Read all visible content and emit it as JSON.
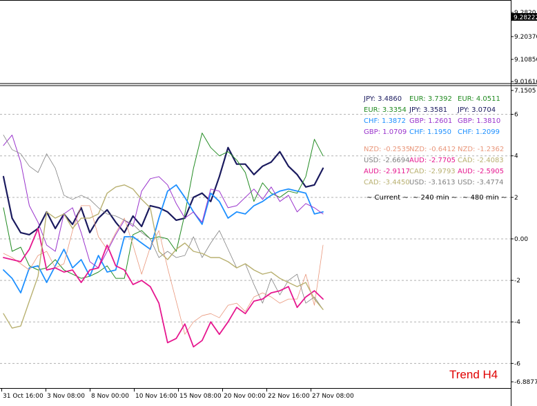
{
  "chart_data": [
    {
      "type": "line",
      "panel": "price",
      "title": "",
      "y_ticks": [
        "9.2820",
        "9.20370",
        "9.10850",
        "9.01610"
      ],
      "current_price_label": "9.28222"
    },
    {
      "type": "line",
      "panel": "currency-strength",
      "title": "Trend H4",
      "ylim": [
        -6.8877,
        7.1505
      ],
      "y_ticks": [
        "7.1505",
        "6",
        "4",
        "2",
        "0.00",
        "-2",
        "-4",
        "-6",
        "-6.8877"
      ],
      "zero_label": "0.00",
      "x_ticks": [
        "31 Oct 16:00",
        "3 Nov 08:00",
        "8 Nov 00:00",
        "10 Nov 16:00",
        "15 Nov 08:00",
        "20 Nov 00:00",
        "22 Nov 16:00",
        "27 Nov 08:00"
      ],
      "grid": true,
      "colors": {
        "JPY": "#1a1a5e",
        "EUR": "#228b22",
        "CHF": "#1e90ff",
        "GBP": "#9932cc",
        "NZD": "#e9967a",
        "USD": "#808080",
        "AUD": "#e6178f",
        "CAD": "#b8b070"
      },
      "series": [
        {
          "name": "JPY",
          "width": 2.2,
          "values": [
            3.0,
            1.0,
            0.3,
            0.2,
            0.5,
            1.3,
            0.5,
            1.2,
            0.7,
            1.5,
            0.3,
            1.0,
            1.4,
            0.8,
            0.3,
            1.1,
            0.6,
            1.6,
            1.5,
            1.3,
            0.9,
            1.0,
            2.0,
            2.2,
            1.8,
            3.0,
            4.4,
            3.6,
            3.6,
            3.1,
            3.5,
            3.7,
            4.2,
            3.5,
            3.1,
            2.5,
            2.6,
            3.4
          ]
        },
        {
          "name": "EUR",
          "width": 1.0,
          "values": [
            1.5,
            -0.6,
            -0.4,
            -1.3,
            -1.5,
            -1.4,
            -1.0,
            -1.5,
            -1.7,
            -1.9,
            -1.8,
            -1.6,
            -1.3,
            -1.9,
            -1.9,
            0.2,
            0.4,
            0.0,
            0.1,
            0.0,
            -0.6,
            1.2,
            3.4,
            5.1,
            4.4,
            4.0,
            4.2,
            3.8,
            3.2,
            1.8,
            2.7,
            2.2,
            2.0,
            2.3,
            2.2,
            3.0,
            4.8,
            4.0
          ]
        },
        {
          "name": "CHF",
          "width": 1.8,
          "values": [
            -1.5,
            -1.9,
            -2.6,
            -1.4,
            -1.3,
            -2.1,
            -1.3,
            -0.5,
            -1.4,
            -1.0,
            -1.8,
            -0.8,
            -1.6,
            -1.5,
            0.1,
            0.1,
            -0.2,
            -0.5,
            1.0,
            2.3,
            2.6,
            2.0,
            1.3,
            0.7,
            2.2,
            1.8,
            1.0,
            1.3,
            1.2,
            1.6,
            1.8,
            2.1,
            2.3,
            2.4,
            2.3,
            2.2,
            1.2,
            1.3
          ]
        },
        {
          "name": "GBP",
          "width": 1.0,
          "values": [
            4.5,
            5.0,
            3.7,
            1.6,
            0.8,
            -0.3,
            -0.6,
            1.2,
            1.5,
            0.3,
            -1.1,
            -1.4,
            -0.6,
            0.2,
            0.9,
            0.6,
            2.3,
            2.9,
            3.0,
            2.6,
            1.7,
            1.0,
            1.3,
            0.8,
            2.4,
            2.3,
            1.5,
            1.6,
            2.0,
            2.4,
            1.9,
            2.5,
            1.8,
            2.1,
            1.3,
            1.7,
            1.5,
            1.2
          ]
        },
        {
          "name": "NZD",
          "width": 0.8,
          "values": [
            -0.7,
            -0.9,
            -1.2,
            -1.5,
            -0.8,
            -0.6,
            -1.4,
            -1.2,
            0.4,
            1.6,
            1.6,
            0.1,
            -0.5,
            0.3,
            1.0,
            -0.3,
            -1.7,
            -0.4,
            0.4,
            -1.4,
            -3.0,
            -4.6,
            -4.0,
            -3.7,
            -3.6,
            -3.8,
            -3.2,
            -3.1,
            -3.5,
            -2.8,
            -2.6,
            -2.8,
            -3.1,
            -2.9,
            -2.9,
            -1.7,
            -3.2,
            -0.3
          ]
        },
        {
          "name": "USD",
          "width": 0.8,
          "values": [
            5.0,
            4.3,
            4.1,
            3.5,
            3.2,
            4.1,
            3.4,
            2.1,
            1.9,
            2.1,
            1.9,
            1.5,
            1.2,
            1.1,
            0.9,
            0.7,
            0.3,
            0.0,
            -0.9,
            -0.6,
            -0.9,
            -0.8,
            0.1,
            -0.9,
            -0.2,
            0.4,
            -0.5,
            -1.4,
            -1.2,
            -2.2,
            -3.1,
            -1.9,
            -2.7,
            -2.0,
            -1.7,
            -3.1,
            -2.8,
            -3.4
          ]
        },
        {
          "name": "AUD",
          "width": 1.8,
          "values": [
            -0.9,
            -1.0,
            -1.1,
            -0.5,
            0.5,
            -1.5,
            -1.4,
            -1.6,
            -1.5,
            -2.1,
            -1.5,
            -1.4,
            -0.3,
            -1.3,
            -1.5,
            -2.2,
            -2.0,
            -2.3,
            -3.1,
            -5.0,
            -4.8,
            -4.1,
            -5.2,
            -4.9,
            -4.0,
            -4.6,
            -4.0,
            -3.3,
            -3.6,
            -3.0,
            -2.9,
            -2.6,
            -2.5,
            -2.3,
            -3.3,
            -2.8,
            -2.5,
            -2.9
          ]
        },
        {
          "name": "CAD",
          "width": 1.4,
          "values": [
            -3.6,
            -4.3,
            -4.2,
            -3.0,
            -1.8,
            1.3,
            1.0,
            1.2,
            0.5,
            1.0,
            1.0,
            1.2,
            2.2,
            2.5,
            2.6,
            2.4,
            1.9,
            1.5,
            -0.6,
            -1.0,
            -0.5,
            -0.2,
            -0.6,
            -0.7,
            -0.9,
            -0.9,
            -1.1,
            -1.4,
            -1.2,
            -1.5,
            -1.7,
            -1.6,
            -1.9,
            -2.1,
            -2.3,
            -2.1,
            -2.9,
            -3.4
          ]
        }
      ]
    }
  ],
  "table": {
    "rows": [
      [
        {
          "name": "JPY",
          "text": "JPY: 3.4860"
        },
        {
          "name": "EUR",
          "text": "EUR: 3.7392"
        },
        {
          "name": "EUR",
          "text": "EUR: 4.0511"
        }
      ],
      [
        {
          "name": "EUR",
          "text": "EUR: 3.3354"
        },
        {
          "name": "JPY",
          "text": "JPY: 3.3581"
        },
        {
          "name": "JPY",
          "text": "JPY: 3.0704"
        }
      ],
      [
        {
          "name": "CHF",
          "text": "CHF: 1.3872"
        },
        {
          "name": "GBP",
          "text": "GBP: 1.2601"
        },
        {
          "name": "GBP",
          "text": "GBP: 1.3810"
        }
      ],
      [
        {
          "name": "GBP",
          "text": "GBP: 1.0709"
        },
        {
          "name": "CHF",
          "text": "CHF: 1.1950"
        },
        {
          "name": "CHF",
          "text": "CHF: 1.2099"
        }
      ],
      [
        {
          "name": "NZD",
          "text": "NZD: -0.2535"
        },
        {
          "name": "NZD",
          "text": "NZD: -0.6412"
        },
        {
          "name": "NZD",
          "text": "NZD: -1.2362"
        }
      ],
      [
        {
          "name": "USD",
          "text": "USD: -2.6694"
        },
        {
          "name": "AUD",
          "text": "AUD: -2.7705"
        },
        {
          "name": "CAD",
          "text": "CAD: -2.4083"
        }
      ],
      [
        {
          "name": "AUD",
          "text": "AUD: -2.9117"
        },
        {
          "name": "CAD",
          "text": "CAD: -2.9793"
        },
        {
          "name": "AUD",
          "text": "AUD: -2.5905"
        }
      ],
      [
        {
          "name": "CAD",
          "text": "CAD: -3.4450"
        },
        {
          "name": "USD",
          "text": "USD: -3.1613"
        },
        {
          "name": "USD",
          "text": "USD: -3.4774"
        }
      ]
    ],
    "footer": [
      "~ Current ~",
      "~ 240 min ~",
      "~ 480 min ~"
    ]
  }
}
